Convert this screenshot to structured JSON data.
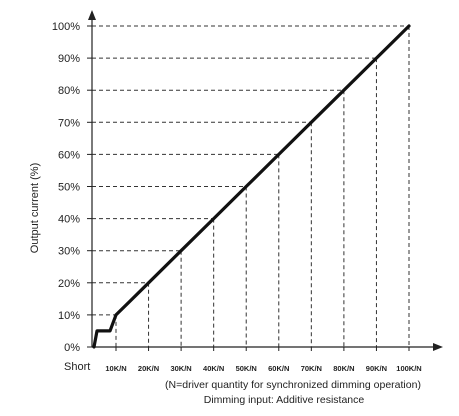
{
  "chart_data": {
    "type": "line",
    "ylabel": "Output current (%)",
    "note": "(N=driver quantity for synchronized dimming operation)",
    "xlabel": "Dimming input: Additive resistance",
    "x_origin_label": "Short",
    "x_categories": [
      "10K/N",
      "20K/N",
      "30K/N",
      "40K/N",
      "50K/N",
      "60K/N",
      "70K/N",
      "80K/N",
      "90K/N",
      "100K/N"
    ],
    "y_ticks": [
      "0%",
      "10%",
      "20%",
      "30%",
      "40%",
      "50%",
      "60%",
      "70%",
      "80%",
      "90%",
      "100%"
    ],
    "ylim": [
      0,
      100
    ],
    "grid": "dashed reference lines from each point to both axes",
    "series": [
      {
        "points": [
          {
            "x": "Short",
            "y": 0
          },
          {
            "x": "Short",
            "y": 5
          },
          {
            "x": "Short",
            "y": 5
          },
          {
            "x": "10K/N",
            "y": 10
          },
          {
            "x": "20K/N",
            "y": 20
          },
          {
            "x": "30K/N",
            "y": 30
          },
          {
            "x": "40K/N",
            "y": 40
          },
          {
            "x": "50K/N",
            "y": 50
          },
          {
            "x": "60K/N",
            "y": 60
          },
          {
            "x": "70K/N",
            "y": 70
          },
          {
            "x": "80K/N",
            "y": 80
          },
          {
            "x": "90K/N",
            "y": 90
          },
          {
            "x": "100K/N",
            "y": 100
          }
        ]
      }
    ],
    "colors": {
      "line": "#111111",
      "axis": "#222222",
      "dashed": "#333333"
    }
  }
}
